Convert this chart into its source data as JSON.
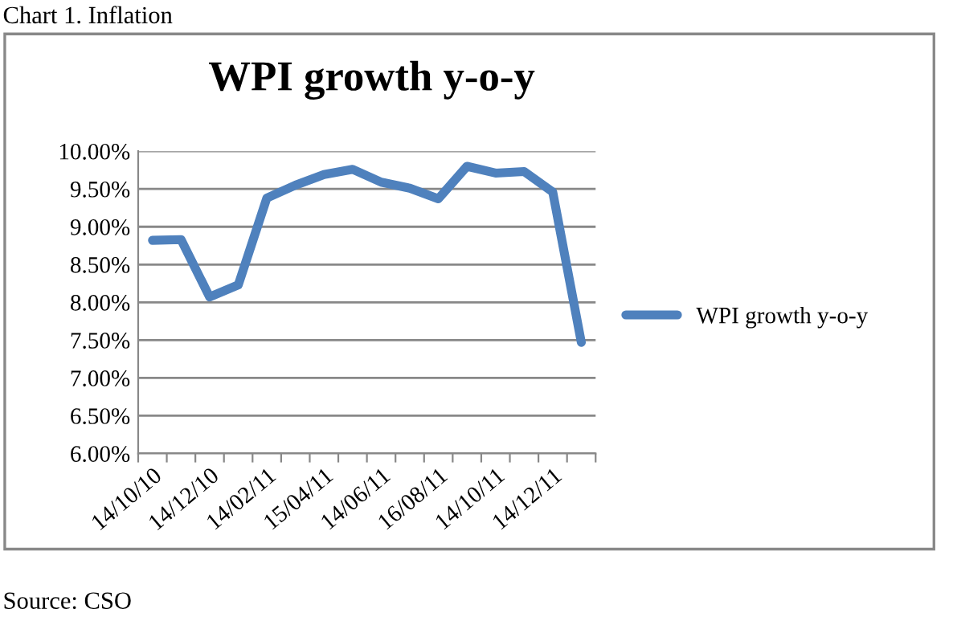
{
  "chart_data": {
    "type": "line",
    "title": "WPI growth y-o-y",
    "annotations": [
      "Chart 1. Inflation",
      "Source: CSO"
    ],
    "categories": [
      "14/10/10",
      null,
      "14/12/10",
      null,
      "14/02/11",
      null,
      "15/04/11",
      null,
      "14/06/11",
      null,
      "16/08/11",
      null,
      "14/10/11",
      null,
      "14/12/11",
      null
    ],
    "series": [
      {
        "name": "WPI growth y-o-y",
        "color": "#4f81bd",
        "values": [
          8.82,
          8.83,
          8.07,
          8.23,
          9.38,
          9.55,
          9.69,
          9.76,
          9.59,
          9.51,
          9.37,
          9.8,
          9.71,
          9.73,
          9.46,
          7.47
        ]
      }
    ],
    "ylim": [
      6,
      10
    ],
    "yticks": [
      {
        "value": 6,
        "label": "6.00%"
      },
      {
        "value": 6.5,
        "label": "6.50%"
      },
      {
        "value": 7,
        "label": "7.00%"
      },
      {
        "value": 7.5,
        "label": "7.50%"
      },
      {
        "value": 8,
        "label": "8.00%"
      },
      {
        "value": 8.5,
        "label": "8.50%"
      },
      {
        "value": 9,
        "label": "9.00%"
      },
      {
        "value": 9.5,
        "label": "9.50%"
      },
      {
        "value": 10,
        "label": "10.00%"
      }
    ],
    "grid": "y",
    "legend": "right",
    "marker": "none",
    "line_style": "solid"
  }
}
